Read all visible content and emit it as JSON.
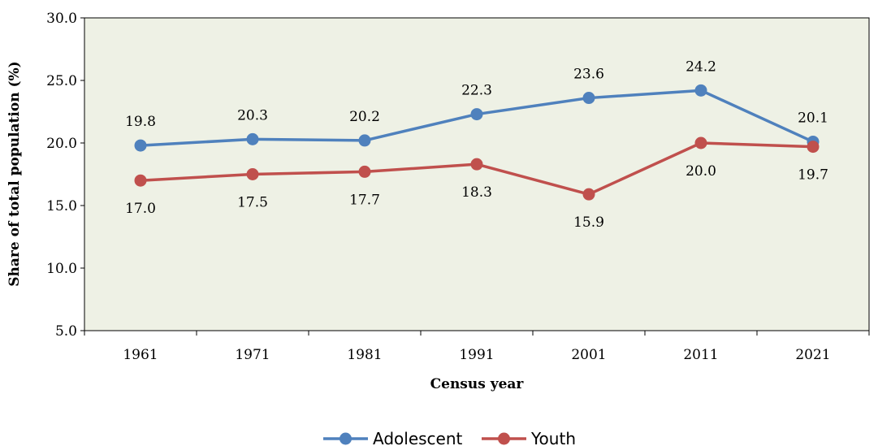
{
  "chart_data": {
    "type": "line",
    "categories": [
      "1961",
      "1971",
      "1981",
      "1991",
      "2001",
      "2011",
      "2021"
    ],
    "series": [
      {
        "name": "Adolescent",
        "color": "#4F81BD",
        "values": [
          19.8,
          20.3,
          20.2,
          22.3,
          23.6,
          24.2,
          20.1
        ],
        "labels": [
          "19.8",
          "20.3",
          "20.2",
          "22.3",
          "23.6",
          "24.2",
          "20.1"
        ]
      },
      {
        "name": "Youth",
        "color": "#C0504D",
        "values": [
          17.0,
          17.5,
          17.7,
          18.3,
          15.9,
          20.0,
          19.7
        ],
        "labels": [
          "17.0",
          "17.5",
          "17.7",
          "18.3",
          "15.9",
          "20.0",
          "19.7"
        ]
      }
    ],
    "xlabel": "Census year",
    "ylabel": "Share of total population (%)",
    "ylim": [
      5.0,
      30.0
    ],
    "yticks": [
      "5.0",
      "10.0",
      "15.0",
      "20.0",
      "25.0",
      "30.0"
    ],
    "plot_background": "#EEF1E5",
    "grid": false,
    "legend": "bottom"
  }
}
